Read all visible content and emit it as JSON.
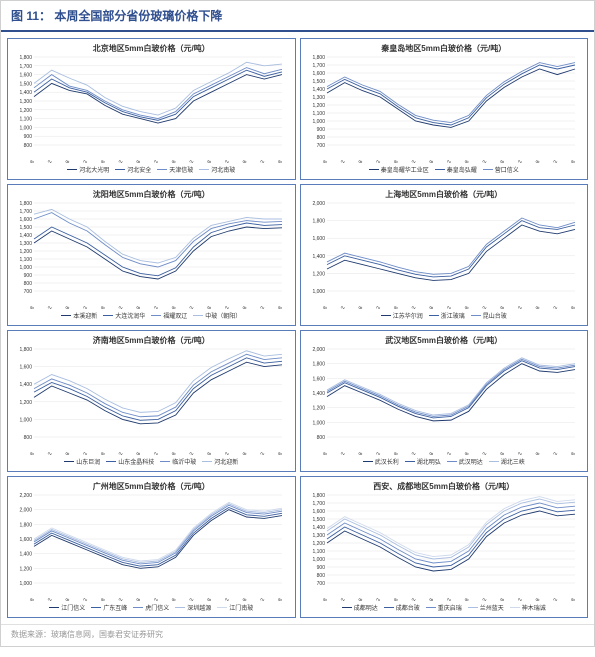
{
  "figure_label": "图 11：",
  "figure_title": "本周全国部分省份玻璃价格下降",
  "footer_text": "数据来源：玻璃信息网，国泰君安证券研究",
  "x_labels": [
    "12/08",
    "13/02",
    "13/08",
    "14/02",
    "14/08",
    "15/02",
    "15/08",
    "16/02",
    "16/08",
    "17/02",
    "17/08",
    "18/02",
    "18/08",
    "19/02",
    "19/08"
  ],
  "series_colors": [
    "#1f3a6e",
    "#3b5fa0",
    "#6e8cc7",
    "#a9bee0",
    "#cfd9ec"
  ],
  "grid_color": "#dddddd",
  "border_color": "#5a7cb8",
  "panels": [
    {
      "title": "北京地区5mm白玻价格（元/吨）",
      "ymin": 800,
      "ymax": 1800,
      "ystep": 100,
      "legend": [
        "河北大光明",
        "河北安全",
        "天津信玻",
        "河北南玻"
      ],
      "series": [
        [
          1350,
          1500,
          1420,
          1380,
          1250,
          1150,
          1100,
          1050,
          1100,
          1300,
          1400,
          1500,
          1600,
          1550,
          1600
        ],
        [
          1400,
          1550,
          1450,
          1400,
          1280,
          1180,
          1120,
          1080,
          1150,
          1350,
          1450,
          1550,
          1650,
          1580,
          1630
        ],
        [
          1450,
          1600,
          1470,
          1420,
          1300,
          1200,
          1140,
          1100,
          1180,
          1380,
          1480,
          1580,
          1680,
          1610,
          1660
        ],
        [
          1500,
          1650,
          1560,
          1480,
          1340,
          1240,
          1180,
          1140,
          1220,
          1420,
          1520,
          1620,
          1740,
          1700,
          1720
        ]
      ]
    },
    {
      "title": "秦皇岛地区5mm白玻价格（元/吨）",
      "ymin": 700,
      "ymax": 1800,
      "ystep": 100,
      "legend": [
        "秦皇岛耀华工业区",
        "秦皇岛弘耀",
        "营口信义"
      ],
      "series": [
        [
          1350,
          1480,
          1380,
          1300,
          1150,
          1000,
          950,
          920,
          1000,
          1250,
          1420,
          1550,
          1650,
          1580,
          1650
        ],
        [
          1400,
          1520,
          1420,
          1340,
          1180,
          1040,
          980,
          950,
          1040,
          1290,
          1460,
          1590,
          1700,
          1650,
          1700
        ],
        [
          1430,
          1550,
          1450,
          1370,
          1210,
          1070,
          1010,
          980,
          1070,
          1320,
          1490,
          1620,
          1730,
          1680,
          1730
        ]
      ]
    },
    {
      "title": "沈阳地区5mm白玻价格（元/吨）",
      "ymin": 700,
      "ymax": 1800,
      "ystep": 100,
      "legend": [
        "本溪迎新",
        "大连沈润华",
        "福耀双辽",
        "中玻（朝阳）"
      ],
      "series": [
        [
          1300,
          1450,
          1350,
          1250,
          1100,
          950,
          880,
          850,
          950,
          1200,
          1380,
          1450,
          1500,
          1480,
          1490
        ],
        [
          1350,
          1500,
          1400,
          1300,
          1150,
          1000,
          920,
          890,
          990,
          1250,
          1430,
          1500,
          1550,
          1520,
          1530
        ],
        [
          1600,
          1680,
          1550,
          1450,
          1280,
          1120,
          1040,
          1000,
          1080,
          1320,
          1480,
          1540,
          1580,
          1560,
          1570
        ],
        [
          1660,
          1720,
          1600,
          1500,
          1320,
          1160,
          1080,
          1050,
          1120,
          1360,
          1520,
          1570,
          1620,
          1600,
          1600
        ]
      ]
    },
    {
      "title": "上海地区5mm白玻价格（元/吨）",
      "ymin": 1000,
      "ymax": 2000,
      "ystep": 200,
      "legend": [
        "江苏华尔润",
        "浙江玻璃",
        "昆山台玻"
      ],
      "series": [
        [
          1250,
          1350,
          1300,
          1250,
          1200,
          1150,
          1120,
          1130,
          1200,
          1450,
          1600,
          1750,
          1680,
          1650,
          1700
        ],
        [
          1300,
          1400,
          1350,
          1300,
          1240,
          1190,
          1160,
          1170,
          1250,
          1500,
          1650,
          1800,
          1720,
          1700,
          1750
        ],
        [
          1330,
          1430,
          1380,
          1330,
          1270,
          1220,
          1190,
          1200,
          1280,
          1530,
          1680,
          1830,
          1750,
          1720,
          1780
        ]
      ]
    },
    {
      "title": "济南地区5mm白玻价格（元/吨）",
      "ymin": 800,
      "ymax": 1800,
      "ystep": 200,
      "legend": [
        "山东巨润",
        "山东金晶科技",
        "临沂中玻",
        "河北迎新"
      ],
      "series": [
        [
          1250,
          1380,
          1300,
          1220,
          1100,
          1000,
          950,
          960,
          1050,
          1300,
          1450,
          1550,
          1650,
          1600,
          1620
        ],
        [
          1310,
          1420,
          1350,
          1260,
          1140,
          1040,
          990,
          1000,
          1100,
          1350,
          1500,
          1600,
          1700,
          1640,
          1660
        ],
        [
          1350,
          1460,
          1390,
          1300,
          1180,
          1080,
          1030,
          1040,
          1140,
          1390,
          1540,
          1640,
          1740,
          1680,
          1700
        ],
        [
          1400,
          1510,
          1440,
          1350,
          1230,
          1130,
          1080,
          1090,
          1190,
          1440,
          1590,
          1690,
          1780,
          1720,
          1740
        ]
      ]
    },
    {
      "title": "武汉地区5mm白玻价格（元/吨）",
      "ymin": 800,
      "ymax": 2000,
      "ystep": 200,
      "legend": [
        "武汉长利",
        "湖北明弘",
        "武汉明达",
        "湖北三峡"
      ],
      "series": [
        [
          1350,
          1500,
          1400,
          1300,
          1180,
          1080,
          1020,
          1030,
          1150,
          1450,
          1650,
          1800,
          1700,
          1680,
          1720
        ],
        [
          1400,
          1540,
          1440,
          1340,
          1220,
          1120,
          1060,
          1080,
          1200,
          1500,
          1700,
          1840,
          1740,
          1720,
          1760
        ],
        [
          1420,
          1560,
          1460,
          1360,
          1240,
          1140,
          1080,
          1100,
          1220,
          1520,
          1720,
          1860,
          1760,
          1740,
          1780
        ],
        [
          1440,
          1580,
          1480,
          1380,
          1260,
          1160,
          1100,
          1120,
          1240,
          1540,
          1740,
          1880,
          1780,
          1760,
          1800
        ]
      ]
    },
    {
      "title": "广州地区5mm白玻价格（元/吨）",
      "ymin": 1000,
      "ymax": 2200,
      "ystep": 200,
      "legend": [
        "江门信义",
        "广东互峰",
        "虎门信义",
        "深圳越源",
        "江门南玻"
      ],
      "series": [
        [
          1500,
          1650,
          1550,
          1450,
          1350,
          1250,
          1200,
          1220,
          1350,
          1650,
          1850,
          2000,
          1900,
          1880,
          1920
        ],
        [
          1530,
          1680,
          1580,
          1480,
          1380,
          1280,
          1230,
          1250,
          1380,
          1680,
          1880,
          2030,
          1930,
          1910,
          1950
        ],
        [
          1560,
          1710,
          1610,
          1510,
          1410,
          1310,
          1260,
          1280,
          1410,
          1710,
          1910,
          2060,
          1960,
          1940,
          1980
        ],
        [
          1580,
          1730,
          1630,
          1530,
          1430,
          1330,
          1280,
          1300,
          1430,
          1730,
          1930,
          2080,
          1980,
          1960,
          2000
        ],
        [
          1600,
          1750,
          1650,
          1550,
          1450,
          1350,
          1300,
          1320,
          1450,
          1750,
          1950,
          2100,
          2000,
          1980,
          2020
        ]
      ]
    },
    {
      "title": "西安、成都地区5mm白玻价格（元/吨）",
      "ymin": 700,
      "ymax": 1800,
      "ystep": 100,
      "legend": [
        "成都明达",
        "成都台玻",
        "重庆启瑞",
        "兰州蓝天",
        "神木瑞诚"
      ],
      "series": [
        [
          1200,
          1350,
          1250,
          1150,
          1020,
          900,
          850,
          870,
          1000,
          1280,
          1450,
          1550,
          1600,
          1540,
          1560
        ],
        [
          1250,
          1400,
          1300,
          1200,
          1070,
          950,
          900,
          920,
          1050,
          1330,
          1500,
          1600,
          1650,
          1590,
          1610
        ],
        [
          1300,
          1450,
          1350,
          1250,
          1120,
          1000,
          950,
          970,
          1100,
          1380,
          1550,
          1650,
          1700,
          1640,
          1660
        ],
        [
          1350,
          1500,
          1400,
          1300,
          1170,
          1050,
          1000,
          1020,
          1150,
          1430,
          1600,
          1700,
          1750,
          1690,
          1710
        ],
        [
          1380,
          1530,
          1430,
          1330,
          1200,
          1080,
          1030,
          1050,
          1180,
          1460,
          1630,
          1730,
          1780,
          1720,
          1740
        ]
      ]
    }
  ]
}
